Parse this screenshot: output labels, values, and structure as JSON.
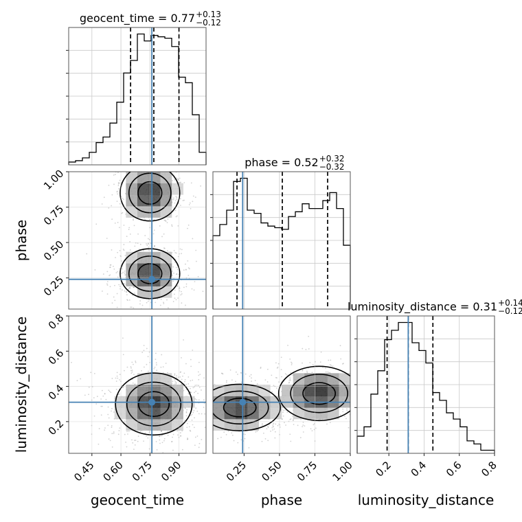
{
  "chart_data": {
    "type": "corner",
    "grid": true,
    "truth_color": "#4682b4",
    "parameters": [
      {
        "name": "geocent_time",
        "title": {
          "prefix": "geocent_time = 0.77",
          "sup": "+0.13",
          "sub": "−0.12"
        },
        "range": [
          0.33,
          1.04
        ],
        "ticks": [
          0.45,
          0.6,
          0.75,
          0.9
        ],
        "tick_labels": [
          "0.45",
          "0.60",
          "0.75",
          "0.90"
        ],
        "truth": 0.76,
        "median": 0.77,
        "quantiles": [
          0.65,
          0.77,
          0.9
        ],
        "histogram": {
          "edges": [
            0.33,
            0.3655,
            0.401,
            0.4365,
            0.472,
            0.5075,
            0.543,
            0.5785,
            0.614,
            0.6495,
            0.685,
            0.7205,
            0.756,
            0.7915,
            0.827,
            0.8625,
            0.898,
            0.9335,
            0.969,
            1.0045,
            1.04
          ],
          "counts": [
            2,
            3,
            5,
            9,
            16,
            20,
            30,
            45,
            66,
            75,
            94,
            89,
            93,
            92,
            91,
            85,
            63,
            59,
            36,
            9
          ]
        }
      },
      {
        "name": "phase",
        "title": {
          "prefix": "phase = 0.52",
          "sup": "+0.32",
          "sub": "−0.32"
        },
        "range": [
          0.03,
          1.0
        ],
        "ticks": [
          0.25,
          0.5,
          0.75,
          1.0
        ],
        "tick_labels": [
          "0.25",
          "0.50",
          "0.75",
          "1.00"
        ],
        "truth": 0.24,
        "median": 0.52,
        "quantiles": [
          0.2,
          0.52,
          0.84
        ],
        "histogram": {
          "edges": [
            0.03,
            0.0785,
            0.127,
            0.1755,
            0.224,
            0.2725,
            0.321,
            0.3695,
            0.418,
            0.4665,
            0.515,
            0.5635,
            0.612,
            0.6605,
            0.709,
            0.7575,
            0.806,
            0.8545,
            0.903,
            0.9515,
            1.0
          ],
          "counts": [
            46,
            53,
            62,
            80,
            82,
            62,
            60,
            54,
            52,
            51,
            50,
            58,
            61,
            66,
            63,
            63,
            68,
            73,
            63,
            40
          ]
        }
      },
      {
        "name": "luminosity_distance",
        "title": {
          "prefix": "luminosity_distance = 0.31",
          "sup": "+0.14",
          "sub": "−0.12"
        },
        "range": [
          0.02,
          0.8
        ],
        "ticks": [
          0.2,
          0.4,
          0.6,
          0.8
        ],
        "tick_labels": [
          "0.2",
          "0.4",
          "0.6",
          "0.8"
        ],
        "truth": 0.31,
        "median": 0.31,
        "quantiles": [
          0.19,
          0.31,
          0.45
        ],
        "histogram": {
          "edges": [
            0.02,
            0.059,
            0.098,
            0.137,
            0.176,
            0.215,
            0.254,
            0.293,
            0.332,
            0.371,
            0.41,
            0.449,
            0.488,
            0.527,
            0.566,
            0.605,
            0.644,
            0.683,
            0.722,
            0.761,
            0.8
          ],
          "counts": [
            11,
            17,
            38,
            53,
            73,
            79,
            84,
            84,
            71,
            66,
            58,
            39,
            34,
            26,
            22,
            17,
            8,
            6,
            2,
            2
          ]
        }
      }
    ],
    "panels_2d": [
      {
        "x": "geocent_time",
        "y": "phase",
        "y_ticks": [
          0.25,
          0.5,
          0.75,
          1.0
        ],
        "y_tick_labels": [
          "0.25",
          "0.50",
          "0.75",
          "1.00"
        ],
        "modes": [
          {
            "x": 0.75,
            "y": 0.85,
            "w": 0.07,
            "h": 0.09
          },
          {
            "x": 0.75,
            "y": 0.28,
            "w": 0.07,
            "h": 0.08
          }
        ],
        "truth": [
          0.76,
          0.24
        ]
      },
      {
        "x": "geocent_time",
        "y": "luminosity_distance",
        "y_ticks": [
          0.2,
          0.4,
          0.6,
          0.8
        ],
        "y_tick_labels": [
          "0.2",
          "0.4",
          "0.6",
          "0.8"
        ],
        "modes": [
          {
            "x": 0.77,
            "y": 0.3,
            "w": 0.09,
            "h": 0.08
          }
        ],
        "truth": [
          0.76,
          0.31
        ]
      },
      {
        "x": "phase",
        "y": "luminosity_distance",
        "modes": [
          {
            "x": 0.22,
            "y": 0.28,
            "w": 0.13,
            "h": 0.06
          },
          {
            "x": 0.78,
            "y": 0.36,
            "w": 0.13,
            "h": 0.07
          }
        ],
        "truth": [
          0.24,
          0.31
        ]
      }
    ],
    "x_axis_labels": [
      "geocent_time",
      "phase",
      "luminosity_distance"
    ],
    "y_axis_labels": [
      "phase",
      "luminosity_distance"
    ]
  }
}
